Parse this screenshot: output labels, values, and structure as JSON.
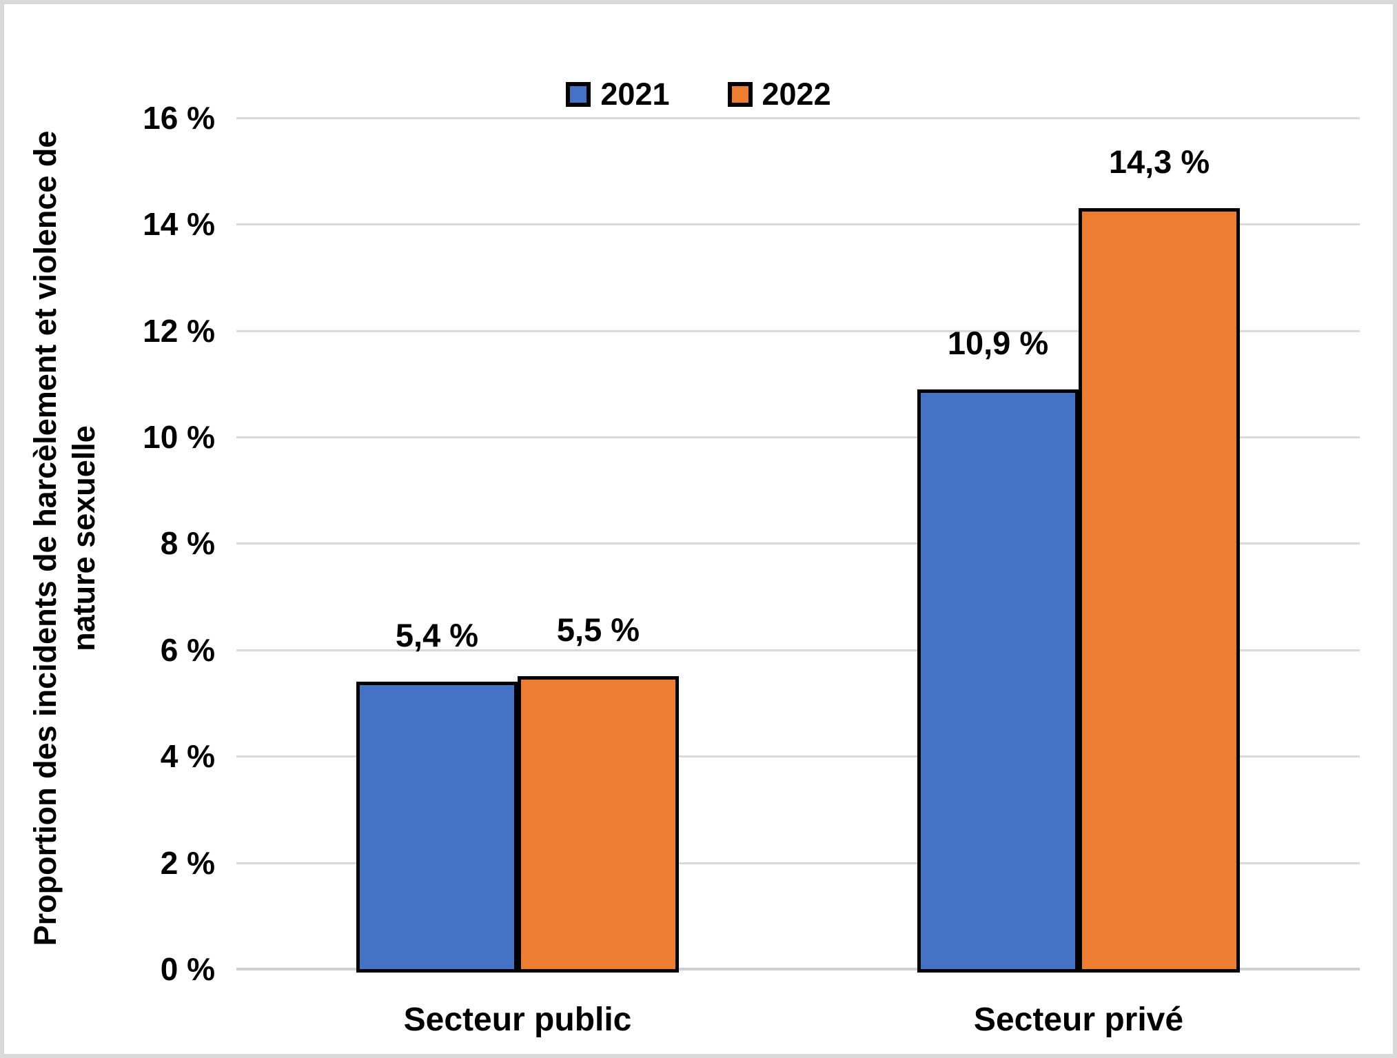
{
  "figure": {
    "background": "#FFFFFF",
    "frame_border_color": "#D9D9D9",
    "gridline_color": "#D9D9D9",
    "axisline_color": "#CFCFCF",
    "bar_border_color": "#000000"
  },
  "legend": {
    "position": "top-center",
    "items": [
      {
        "label": "2021",
        "color": "#4472C4"
      },
      {
        "label": "2022",
        "color": "#ED7D31"
      }
    ]
  },
  "y_axis": {
    "title": "Proportion des incidents de harcèlement et violence de nature sexuelle",
    "title_lines": [
      "Proportion des incidents de harcèlement et violence de",
      "nature sexuelle"
    ],
    "tick_labels": [
      "0 %",
      "2 %",
      "4 %",
      "6 %",
      "8 %",
      "10 %",
      "12 %",
      "14 %",
      "16 %"
    ],
    "min": 0,
    "max": 16,
    "step": 2
  },
  "x_axis": {
    "categories": [
      "Secteur public",
      "Secteur privé"
    ]
  },
  "chart_data": {
    "type": "bar",
    "categories": [
      "Secteur public",
      "Secteur privé"
    ],
    "series": [
      {
        "name": "2021",
        "color": "#4472C4",
        "values": [
          5.4,
          10.9
        ],
        "value_labels": [
          "5,4 %",
          "10,9 %"
        ]
      },
      {
        "name": "2022",
        "color": "#ED7D31",
        "values": [
          5.5,
          14.3
        ],
        "value_labels": [
          "5,5 %",
          "14,3 %"
        ]
      }
    ],
    "title": "",
    "xlabel": "",
    "ylabel": "Proportion des incidents de harcèlement et violence de nature sexuelle",
    "ylim": [
      0,
      16
    ],
    "ytick_step": 2,
    "grid": "horizontal",
    "legend_position": "top-center",
    "value_label_format": "comma-decimal percent"
  }
}
